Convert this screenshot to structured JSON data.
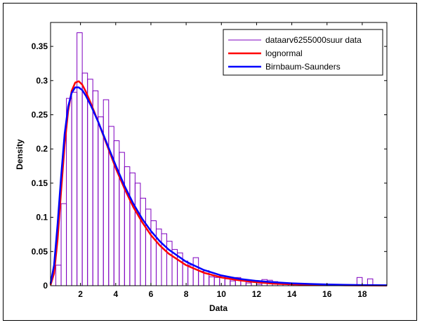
{
  "chart_data": {
    "type": "bar",
    "title": "",
    "xlabel": "Data",
    "ylabel": "Density",
    "xlim": [
      0.3,
      19.4
    ],
    "ylim": [
      0,
      0.385
    ],
    "grid": false,
    "legend_position": "top-right",
    "x_ticks": [
      2,
      4,
      6,
      8,
      10,
      12,
      14,
      16,
      18
    ],
    "y_ticks": [
      0,
      0.05,
      0.1,
      0.15,
      0.2,
      0.25,
      0.3,
      0.35
    ],
    "y_tick_labels": [
      "0",
      "0.05",
      "0.1",
      "0.15",
      "0.2",
      "0.25",
      "0.3",
      "0.35"
    ],
    "histogram": {
      "name": "dataarv6255000suur data",
      "color": "#7f00bf",
      "bin_start": 0.3,
      "bin_width": 0.3,
      "values": [
        0.0,
        0.03,
        0.12,
        0.274,
        0.283,
        0.37,
        0.311,
        0.302,
        0.285,
        0.247,
        0.272,
        0.233,
        0.212,
        0.195,
        0.174,
        0.165,
        0.15,
        0.128,
        0.112,
        0.095,
        0.083,
        0.076,
        0.065,
        0.053,
        0.048,
        0.036,
        0.03,
        0.041,
        0.021,
        0.022,
        0.013,
        0.012,
        0.014,
        0.01,
        0.007,
        0.012,
        0.008,
        0.004,
        0.006,
        0.002,
        0.009,
        0.008,
        0.006,
        0.003,
        0.004,
        0.002,
        0.003,
        0.002,
        0.003,
        0.001,
        0.001,
        0.002,
        0.002,
        0.001,
        0.0,
        0.001,
        0.001,
        0.0,
        0.012,
        0.0,
        0.01,
        0.0,
        0.0,
        0.0,
        0.0
      ]
    },
    "series": [
      {
        "name": "lognormal",
        "color": "#ff0000",
        "x": [
          0.3,
          0.5,
          0.7,
          0.9,
          1.1,
          1.3,
          1.5,
          1.7,
          1.9,
          2.1,
          2.3,
          2.6,
          3.0,
          3.5,
          4.0,
          4.5,
          5.0,
          5.5,
          6.0,
          6.5,
          7.0,
          8.0,
          9.0,
          10.0,
          11.0,
          12.0,
          13.0,
          14.0,
          15.0,
          16.0,
          17.0,
          18.0,
          19.4
        ],
        "y": [
          0.001,
          0.018,
          0.068,
          0.139,
          0.206,
          0.256,
          0.285,
          0.297,
          0.299,
          0.294,
          0.284,
          0.266,
          0.24,
          0.206,
          0.172,
          0.142,
          0.115,
          0.093,
          0.074,
          0.059,
          0.047,
          0.03,
          0.019,
          0.012,
          0.008,
          0.005,
          0.003,
          0.002,
          0.0015,
          0.001,
          0.0007,
          0.0005,
          0.0003
        ]
      },
      {
        "name": "Birnbaum-Saunders",
        "color": "#0000ff",
        "x": [
          0.3,
          0.5,
          0.7,
          0.9,
          1.1,
          1.3,
          1.5,
          1.7,
          1.9,
          2.1,
          2.3,
          2.6,
          3.0,
          3.5,
          4.0,
          4.5,
          5.0,
          5.5,
          6.0,
          6.5,
          7.0,
          8.0,
          9.0,
          10.0,
          11.0,
          12.0,
          13.0,
          14.0,
          15.0,
          16.0,
          17.0,
          18.0,
          19.4
        ],
        "y": [
          0.003,
          0.03,
          0.09,
          0.16,
          0.222,
          0.262,
          0.282,
          0.29,
          0.29,
          0.286,
          0.278,
          0.263,
          0.24,
          0.208,
          0.176,
          0.146,
          0.12,
          0.098,
          0.08,
          0.065,
          0.053,
          0.035,
          0.023,
          0.015,
          0.01,
          0.007,
          0.005,
          0.0035,
          0.0025,
          0.0018,
          0.0013,
          0.0009,
          0.0006
        ]
      }
    ]
  }
}
